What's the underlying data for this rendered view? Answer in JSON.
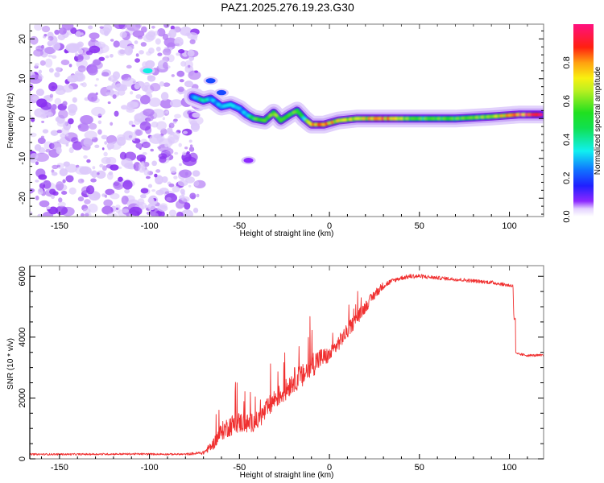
{
  "figure_title": "PAZ1.2025.276.19.23.G30",
  "chart_data": [
    {
      "type": "heatmap",
      "panel": "spectrogram",
      "title": "",
      "xlabel": "Height of straight line (km)",
      "ylabel": "Frequency (Hz)",
      "xlim": [
        -166.5,
        119
      ],
      "ylim": [
        -24.6,
        23.7
      ],
      "xticks": [
        -150,
        -100,
        -50,
        0,
        50,
        100
      ],
      "xtick_labels": [
        "-150",
        "-100",
        "-50",
        "0",
        "50",
        "100"
      ],
      "yticks": [
        -20,
        -10,
        0,
        10,
        20
      ],
      "ytick_labels": [
        "-20",
        "-10",
        "0",
        "10",
        "20"
      ],
      "noise_region_x": [
        -166.5,
        -72
      ],
      "noise_level": 0.05,
      "ridge": {
        "description": "Frequency ridge of signal (height km, frequency Hz, normalized amplitude)",
        "points": [
          {
            "x": -76,
            "y": 5.5,
            "amp": 0.25
          },
          {
            "x": -70,
            "y": 4.5,
            "amp": 0.45
          },
          {
            "x": -66,
            "y": 5.0,
            "amp": 0.3
          },
          {
            "x": -60,
            "y": 3.0,
            "amp": 0.3
          },
          {
            "x": -55,
            "y": 3.5,
            "amp": 0.35
          },
          {
            "x": -50,
            "y": 2.5,
            "amp": 0.3
          },
          {
            "x": -46,
            "y": 1.0,
            "amp": 0.3
          },
          {
            "x": -42,
            "y": 0.0,
            "amp": 0.55
          },
          {
            "x": -36,
            "y": -0.5,
            "amp": 0.55
          },
          {
            "x": -31,
            "y": 1.5,
            "amp": 0.6
          },
          {
            "x": -27,
            "y": -0.5,
            "amp": 0.55
          },
          {
            "x": -22,
            "y": 1.0,
            "amp": 0.55
          },
          {
            "x": -18,
            "y": 2.0,
            "amp": 0.55
          },
          {
            "x": -14,
            "y": 0.0,
            "amp": 0.45
          },
          {
            "x": -10,
            "y": -1.5,
            "amp": 0.8
          },
          {
            "x": -3,
            "y": -1.5,
            "amp": 0.85
          },
          {
            "x": 5,
            "y": -0.5,
            "amp": 0.7
          },
          {
            "x": 15,
            "y": 0.0,
            "amp": 0.65
          },
          {
            "x": 30,
            "y": 0.0,
            "amp": 0.85
          },
          {
            "x": 45,
            "y": 0.0,
            "amp": 0.55
          },
          {
            "x": 70,
            "y": 0.0,
            "amp": 0.55
          },
          {
            "x": 90,
            "y": 0.5,
            "amp": 0.6
          },
          {
            "x": 105,
            "y": 1.0,
            "amp": 0.9
          },
          {
            "x": 119,
            "y": 1.0,
            "amp": 0.95
          }
        ],
        "blobs": [
          {
            "x": -101,
            "y": 12,
            "amp": 0.35
          },
          {
            "x": -66,
            "y": 9.5,
            "amp": 0.2
          },
          {
            "x": -60,
            "y": 6.5,
            "amp": 0.2
          },
          {
            "x": -45,
            "y": -10.5,
            "amp": 0.05
          }
        ]
      },
      "colorbar": {
        "label": "Normalized spectral amplitude",
        "range": [
          0.0,
          1.0
        ],
        "ticks": [
          0.0,
          0.2,
          0.4,
          0.6,
          0.8
        ],
        "tick_labels": [
          "0.0",
          "0.2",
          "0.4",
          "0.6",
          "0.8"
        ],
        "colormap": "rainbow (white-violet-blue-cyan-green-yellow-red-magenta)"
      }
    },
    {
      "type": "line",
      "panel": "snr",
      "title": "",
      "xlabel": "Height of straight line (km)",
      "ylabel": "SNR (10 * v/v)",
      "xlim": [
        -166.5,
        119
      ],
      "ylim": [
        0,
        6350
      ],
      "xticks": [
        -150,
        -100,
        -50,
        0,
        50,
        100
      ],
      "xtick_labels": [
        "-150",
        "-100",
        "-50",
        "0",
        "50",
        "100"
      ],
      "yticks": [
        0,
        2000,
        4000,
        6000
      ],
      "ytick_labels": [
        "0",
        "2000",
        "4000",
        "6000"
      ],
      "series": [
        {
          "name": "SNR",
          "color": "#f03030",
          "x": [
            -166.5,
            -140,
            -110,
            -80,
            -70,
            -65,
            -60,
            -55,
            -50,
            -45,
            -40,
            -35,
            -30,
            -25,
            -20,
            -15,
            -10,
            -5,
            0,
            5,
            10,
            15,
            20,
            25,
            30,
            35,
            40,
            45,
            50,
            60,
            70,
            80,
            90,
            100,
            102,
            103,
            104,
            110,
            119
          ],
          "y": [
            150,
            150,
            160,
            150,
            200,
            450,
            900,
            1100,
            1200,
            1150,
            1250,
            1600,
            2000,
            2200,
            2600,
            2700,
            3100,
            3300,
            3400,
            3800,
            4200,
            4600,
            5000,
            5400,
            5700,
            5850,
            5950,
            6000,
            6000,
            5950,
            5900,
            5850,
            5800,
            5700,
            5700,
            3500,
            3450,
            3400,
            3400
          ],
          "noise": [
            60,
            60,
            60,
            60,
            120,
            350,
            600,
            700,
            700,
            650,
            600,
            700,
            700,
            700,
            800,
            800,
            900,
            700,
            500,
            500,
            500,
            450,
            400,
            350,
            250,
            150,
            150,
            150,
            150,
            120,
            120,
            120,
            120,
            120,
            100,
            80,
            80,
            80,
            80
          ]
        }
      ]
    }
  ]
}
